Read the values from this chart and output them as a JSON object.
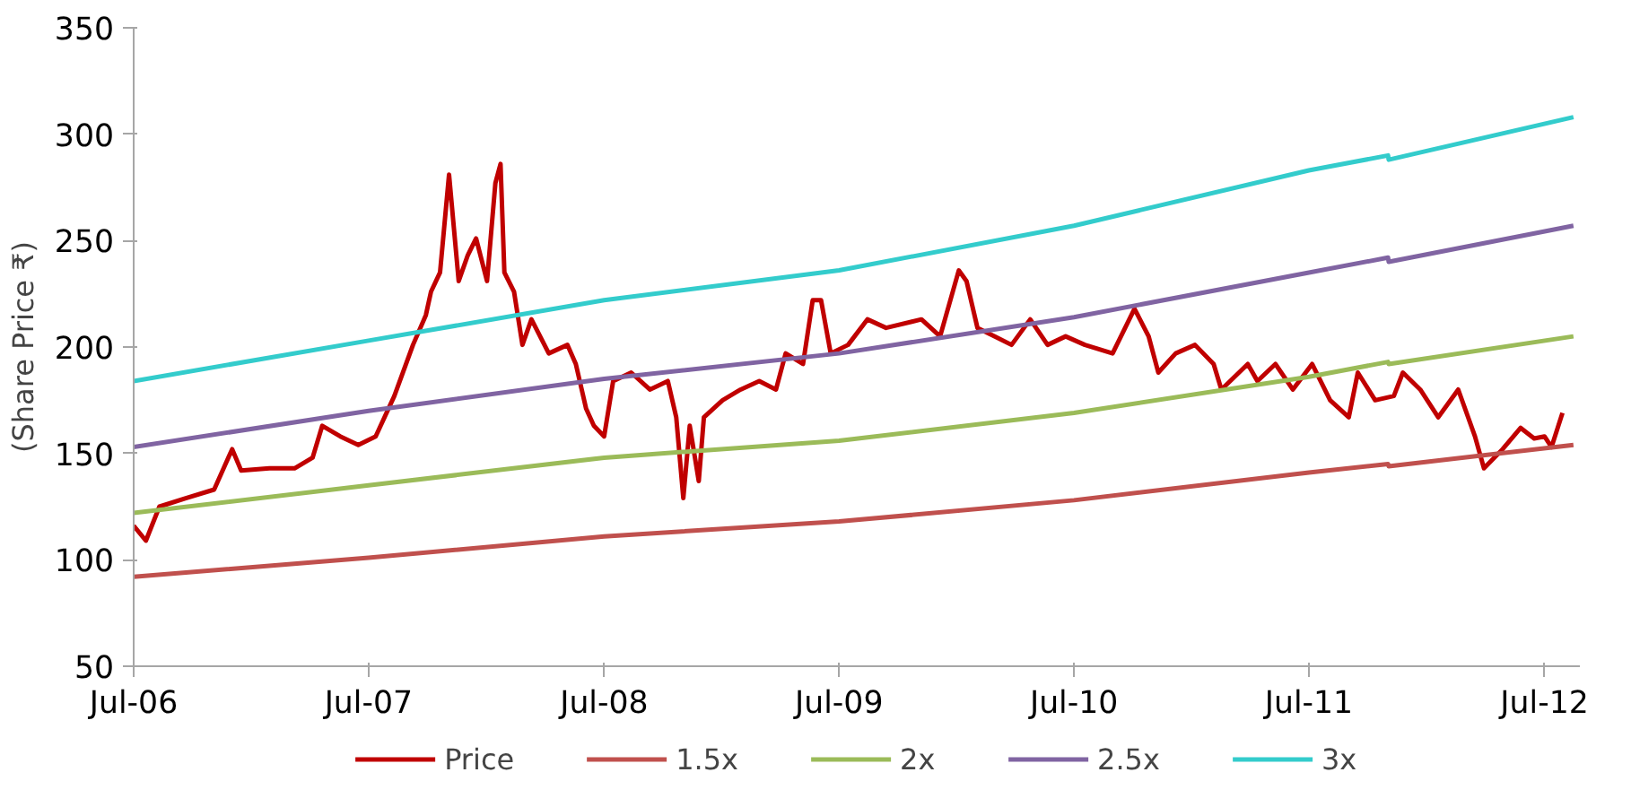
{
  "chart_data": {
    "type": "line",
    "ylabel": "(Share Price ₹)",
    "xlim": [
      "2006-07-01",
      "2012-08-25"
    ],
    "ylim": [
      50,
      350
    ],
    "yticks": [
      50,
      100,
      150,
      200,
      250,
      300,
      350
    ],
    "xticks": [
      {
        "value": "2006-07-01",
        "label": "Jul-06"
      },
      {
        "value": "2007-07-01",
        "label": "Jul-07"
      },
      {
        "value": "2008-07-01",
        "label": "Jul-08"
      },
      {
        "value": "2009-07-01",
        "label": "Jul-09"
      },
      {
        "value": "2010-07-01",
        "label": "Jul-10"
      },
      {
        "value": "2011-07-01",
        "label": "Jul-11"
      },
      {
        "value": "2012-07-01",
        "label": "Jul-12"
      }
    ],
    "grid": false,
    "legend": "bottom",
    "marker": "none",
    "line_style": "solid",
    "series": [
      {
        "name": "Price",
        "color": "#c00000",
        "x": [
          "2006-07-01",
          "2006-07-20",
          "2006-08-10",
          "2006-09-20",
          "2006-11-03",
          "2006-12-01",
          "2006-12-15",
          "2007-01-28",
          "2007-03-08",
          "2007-04-05",
          "2007-04-20",
          "2007-05-18",
          "2007-06-15",
          "2007-07-12",
          "2007-08-10",
          "2007-09-08",
          "2007-09-28",
          "2007-10-06",
          "2007-10-20",
          "2007-11-03",
          "2007-11-18",
          "2007-12-02",
          "2007-12-15",
          "2008-01-01",
          "2008-01-14",
          "2008-01-22",
          "2008-01-28",
          "2008-02-12",
          "2008-02-25",
          "2008-03-10",
          "2008-04-06",
          "2008-05-05",
          "2008-05-18",
          "2008-06-03",
          "2008-06-15",
          "2008-07-01",
          "2008-07-15",
          "2008-08-12",
          "2008-09-10",
          "2008-10-08",
          "2008-10-21",
          "2008-11-01",
          "2008-11-11",
          "2008-11-25",
          "2008-12-03",
          "2009-01-01",
          "2009-01-29",
          "2009-02-27",
          "2009-03-25",
          "2009-04-09",
          "2009-05-06",
          "2009-05-21",
          "2009-06-03",
          "2009-06-18",
          "2009-07-15",
          "2009-08-14",
          "2009-09-12",
          "2009-11-06",
          "2009-12-05",
          "2010-01-03",
          "2010-01-15",
          "2010-02-01",
          "2010-02-28",
          "2010-03-26",
          "2010-04-24",
          "2010-05-21",
          "2010-06-18",
          "2010-07-18",
          "2010-08-30",
          "2010-10-03",
          "2010-10-25",
          "2010-11-09",
          "2010-12-06",
          "2011-01-05",
          "2011-02-03",
          "2011-02-15",
          "2011-03-28",
          "2011-04-12",
          "2011-05-10",
          "2011-06-06",
          "2011-07-06",
          "2011-08-03",
          "2011-09-01",
          "2011-09-15",
          "2011-10-12",
          "2011-11-10",
          "2011-11-24",
          "2011-12-21",
          "2012-01-18",
          "2012-02-18",
          "2012-03-15",
          "2012-03-29",
          "2012-04-27",
          "2012-05-25",
          "2012-06-15",
          "2012-07-01",
          "2012-07-12",
          "2012-07-29"
        ],
        "values": [
          116,
          109,
          125,
          129,
          133,
          152,
          142,
          143,
          143,
          148,
          163,
          158,
          154,
          158,
          177,
          201,
          215,
          226,
          235,
          281,
          231,
          243,
          251,
          231,
          277,
          286,
          235,
          226,
          201,
          213,
          197,
          201,
          192,
          171,
          163,
          158,
          184,
          188,
          180,
          184,
          167,
          129,
          163,
          137,
          167,
          175,
          180,
          184,
          180,
          197,
          192,
          222,
          222,
          197,
          201,
          213,
          209,
          213,
          205,
          236,
          231,
          209,
          205,
          201,
          213,
          201,
          205,
          201,
          197,
          218,
          205,
          188,
          197,
          201,
          192,
          180,
          192,
          184,
          192,
          180,
          192,
          175,
          167,
          188,
          175,
          177,
          188,
          180,
          167,
          180,
          158,
          143,
          152,
          162,
          157,
          158,
          153,
          169
        ]
      },
      {
        "name": "1.5x",
        "color": "#c0504d",
        "x": [
          "2006-07-01",
          "2007-07-01",
          "2008-07-01",
          "2009-07-01",
          "2010-07-01",
          "2011-07-01",
          "2011-11-01",
          "2011-11-02",
          "2012-08-15"
        ],
        "values": [
          92,
          101,
          111,
          118,
          128,
          141,
          145,
          144,
          154
        ]
      },
      {
        "name": "2x",
        "color": "#9bbb59",
        "x": [
          "2006-07-01",
          "2007-07-01",
          "2008-07-01",
          "2009-07-01",
          "2010-07-01",
          "2011-07-01",
          "2011-11-01",
          "2011-11-02",
          "2012-08-15"
        ],
        "values": [
          122,
          135,
          148,
          156,
          169,
          186,
          193,
          192,
          205
        ]
      },
      {
        "name": "2.5x",
        "color": "#8064a2",
        "x": [
          "2006-07-01",
          "2007-07-01",
          "2008-07-01",
          "2009-07-01",
          "2010-07-01",
          "2011-07-01",
          "2011-11-01",
          "2011-11-02",
          "2012-08-15"
        ],
        "values": [
          153,
          170,
          185,
          197,
          214,
          235,
          242,
          240,
          257
        ]
      },
      {
        "name": "3x",
        "color": "#33cccc",
        "x": [
          "2006-07-01",
          "2007-07-01",
          "2008-07-01",
          "2009-07-01",
          "2010-07-01",
          "2011-07-01",
          "2011-11-01",
          "2011-11-02",
          "2012-08-15"
        ],
        "values": [
          184,
          203,
          222,
          236,
          257,
          283,
          290,
          288,
          308
        ]
      }
    ]
  }
}
